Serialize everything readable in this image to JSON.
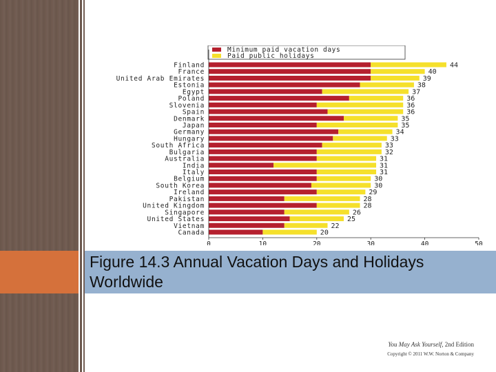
{
  "slide": {
    "title": "Figure 14.3 Annual Vacation Days and Holidays Worldwide",
    "credit_book": "You May Ask Yourself,",
    "credit_edition": "2nd Edition",
    "credit_copyright": "Copyright © 2011 W.W. Norton & Company"
  },
  "colors": {
    "background": "#6f5a4f",
    "accent_orange": "#d5713b",
    "title_band": "#96b1cf",
    "series_min": "#b5202e",
    "series_holidays": "#f5e02c"
  },
  "chart_data": {
    "type": "bar",
    "orientation": "horizontal",
    "stacked": true,
    "categories": [
      "Finland",
      "France",
      "United Arab Emirates",
      "Estonia",
      "Egypt",
      "Poland",
      "Slovenia",
      "Spain",
      "Denmark",
      "Japan",
      "Germany",
      "Hungary",
      "South Africa",
      "Bulgaria",
      "Australia",
      "India",
      "Italy",
      "Belgium",
      "South Korea",
      "Ireland",
      "Pakistan",
      "United Kingdom",
      "Singapore",
      "United States",
      "Vietnam",
      "Canada"
    ],
    "series": [
      {
        "name": "Minimum paid vacation days",
        "values": [
          30,
          30,
          30,
          28,
          21,
          26,
          20,
          22,
          25,
          20,
          24,
          23,
          21,
          20,
          20,
          12,
          20,
          20,
          19,
          20,
          14,
          20,
          14,
          15,
          14,
          10
        ]
      },
      {
        "name": "Paid public holidays",
        "values": [
          14,
          10,
          9,
          10,
          16,
          10,
          16,
          14,
          10,
          15,
          10,
          10,
          11,
          12,
          11,
          19,
          11,
          10,
          11,
          9,
          14,
          8,
          12,
          10,
          8,
          10
        ]
      }
    ],
    "totals": [
      44,
      40,
      39,
      38,
      37,
      36,
      36,
      36,
      35,
      35,
      34,
      33,
      33,
      32,
      31,
      31,
      31,
      30,
      30,
      29,
      28,
      28,
      26,
      25,
      22,
      20
    ],
    "xlim": [
      0,
      50
    ],
    "xticks": [
      0,
      10,
      20,
      30,
      40,
      50
    ],
    "grid": false,
    "legend_position": "top"
  }
}
